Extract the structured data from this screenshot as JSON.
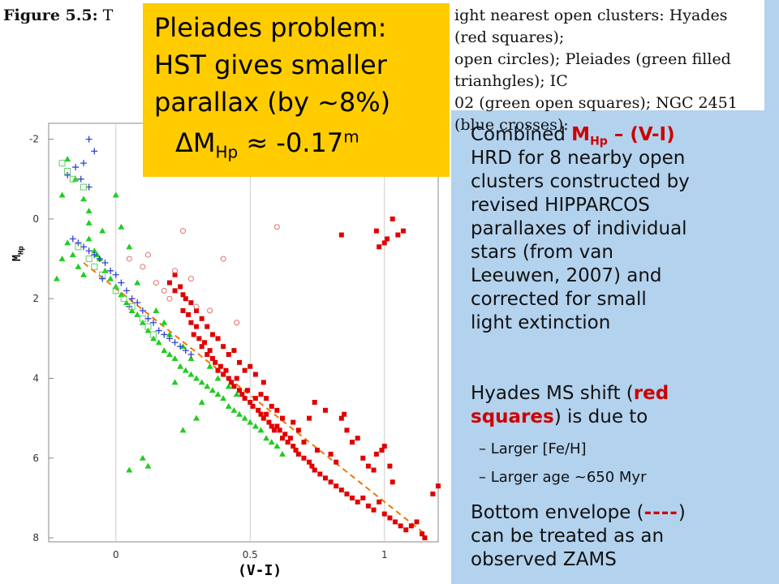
{
  "caption": {
    "segments": [
      {
        "text": "Figure 5.5:",
        "bold": true
      },
      {
        "text": " T",
        "bold": false
      },
      {
        "text": "ight nearest open clusters: Hyades (red squares);",
        "bold": false,
        "gap_before": true
      },
      {
        "text": "open circles); Pleiades (green filled trianhgles); IC",
        "bold": false,
        "gap_before": true
      },
      {
        "text": "02 (green open squares); NGC 2451 (blue crosses):",
        "bold": false,
        "gap_before": true
      }
    ]
  },
  "callout": {
    "line1": "Pleiades problem:",
    "line2": "HST gives smaller",
    "line3": "parallax (by ~8%)",
    "line4_prefix": "ΔM",
    "line4_sub": "Hp",
    "line4_suffix": " ≈ -0.17",
    "line4_sup": "m"
  },
  "axes": {
    "ylabel_main": "M",
    "ylabel_sub": "Hp",
    "xlabel": "(V-I)"
  },
  "text_panel": {
    "p1_prefix": "Combined ",
    "p1_hl_main": "M",
    "p1_hl_sub": "Hp",
    "p1_hl_rest": " – (V-I)",
    "p1_lines": [
      "HRD for 8 nearby open",
      "clusters constructed by",
      "revised HIPPARCOS",
      "parallaxes of individual",
      "stars (from van",
      "Leeuwen, 2007) and",
      "corrected for small",
      "light extinction"
    ],
    "p2_prefix": "Hyades MS shift (",
    "p2_hl1": "red",
    "p2_hl2": "squares",
    "p2_suffix": ") is due to",
    "bullets": [
      "–  Larger [Fe/H]",
      "–  Larger age ~650 Myr"
    ],
    "p3_prefix": "Bottom envelope (",
    "p3_hl": "----",
    "p3_suffix": ")",
    "p3_lines": [
      "can be treated as an",
      "observed ZAMS"
    ]
  },
  "chart_data": {
    "type": "scatter",
    "xlim": [
      -0.25,
      1.2
    ],
    "ylim": [
      8.1,
      -2.4
    ],
    "xticks": [
      "0",
      "0.5",
      "1"
    ],
    "yticks": [
      "-2",
      "0",
      "2",
      "4",
      "6",
      "8"
    ],
    "xlabel": "(V-I)",
    "ylabel": "M_Hp",
    "zams_line": [
      [
        -0.12,
        1.1
      ],
      [
        1.15,
        7.9
      ]
    ],
    "colors": {
      "hyades": "#e00000",
      "pleiades": "#22cc22",
      "ic": "#66cc66",
      "ngc": "#3344cc",
      "open_circles": "#e07070",
      "zams": "#ee7700"
    },
    "series": [
      {
        "name": "Hyades",
        "marker": "filled-square",
        "color": "#e00000",
        "points": [
          [
            0.2,
            1.6
          ],
          [
            0.22,
            1.4
          ],
          [
            0.24,
            1.7
          ],
          [
            0.25,
            1.9
          ],
          [
            0.26,
            2.0
          ],
          [
            0.25,
            2.3
          ],
          [
            0.27,
            2.4
          ],
          [
            0.28,
            2.6
          ],
          [
            0.29,
            2.9
          ],
          [
            0.3,
            2.7
          ],
          [
            0.31,
            3.0
          ],
          [
            0.32,
            3.2
          ],
          [
            0.33,
            3.1
          ],
          [
            0.34,
            3.4
          ],
          [
            0.35,
            3.3
          ],
          [
            0.36,
            3.5
          ],
          [
            0.37,
            3.6
          ],
          [
            0.38,
            3.8
          ],
          [
            0.39,
            3.7
          ],
          [
            0.4,
            3.9
          ],
          [
            0.41,
            3.8
          ],
          [
            0.42,
            4.0
          ],
          [
            0.43,
            4.1
          ],
          [
            0.44,
            4.2
          ],
          [
            0.45,
            4.0
          ],
          [
            0.46,
            4.3
          ],
          [
            0.47,
            4.4
          ],
          [
            0.48,
            4.5
          ],
          [
            0.49,
            4.3
          ],
          [
            0.5,
            4.6
          ],
          [
            0.51,
            4.7
          ],
          [
            0.52,
            4.5
          ],
          [
            0.53,
            4.8
          ],
          [
            0.54,
            4.9
          ],
          [
            0.55,
            5.0
          ],
          [
            0.56,
            4.9
          ],
          [
            0.57,
            5.1
          ],
          [
            0.58,
            5.2
          ],
          [
            0.59,
            5.3
          ],
          [
            0.6,
            5.2
          ],
          [
            0.61,
            5.3
          ],
          [
            0.62,
            5.5
          ],
          [
            0.63,
            5.4
          ],
          [
            0.64,
            5.6
          ],
          [
            0.65,
            5.5
          ],
          [
            0.66,
            5.7
          ],
          [
            0.67,
            5.8
          ],
          [
            0.68,
            5.9
          ],
          [
            0.7,
            6.0
          ],
          [
            0.72,
            6.1
          ],
          [
            0.73,
            6.2
          ],
          [
            0.74,
            6.3
          ],
          [
            0.76,
            6.4
          ],
          [
            0.78,
            6.5
          ],
          [
            0.8,
            6.6
          ],
          [
            0.82,
            6.7
          ],
          [
            0.84,
            6.8
          ],
          [
            0.86,
            6.9
          ],
          [
            0.88,
            7.0
          ],
          [
            0.9,
            7.1
          ],
          [
            0.92,
            7.0
          ],
          [
            0.94,
            7.2
          ],
          [
            0.96,
            7.3
          ],
          [
            0.98,
            7.1
          ],
          [
            1.0,
            7.4
          ],
          [
            1.02,
            7.5
          ],
          [
            1.04,
            7.6
          ],
          [
            1.06,
            7.7
          ],
          [
            1.08,
            7.8
          ],
          [
            1.1,
            7.7
          ],
          [
            1.12,
            7.6
          ],
          [
            1.14,
            7.9
          ],
          [
            1.15,
            8.0
          ],
          [
            1.18,
            6.9
          ],
          [
            1.2,
            6.7
          ],
          [
            1.03,
            6.6
          ],
          [
            0.99,
            5.8
          ],
          [
            0.97,
            5.9
          ],
          [
            1.0,
            5.7
          ],
          [
            1.02,
            6.2
          ],
          [
            0.8,
            5.9
          ],
          [
            0.82,
            6.1
          ],
          [
            0.75,
            5.8
          ],
          [
            0.7,
            5.6
          ],
          [
            0.68,
            5.3
          ],
          [
            0.66,
            5.1
          ],
          [
            0.62,
            5.0
          ],
          [
            0.6,
            4.8
          ],
          [
            0.58,
            4.7
          ],
          [
            0.56,
            4.5
          ],
          [
            0.54,
            4.4
          ],
          [
            0.86,
            5.3
          ],
          [
            0.88,
            5.6
          ],
          [
            0.9,
            5.5
          ],
          [
            0.92,
            6.0
          ],
          [
            0.94,
            6.2
          ],
          [
            0.96,
            6.3
          ],
          [
            0.84,
            5.0
          ],
          [
            0.85,
            4.9
          ],
          [
            0.78,
            4.8
          ],
          [
            0.74,
            4.6
          ],
          [
            0.72,
            5.0
          ],
          [
            0.42,
            3.4
          ],
          [
            0.44,
            3.3
          ],
          [
            0.46,
            3.6
          ],
          [
            0.4,
            3.2
          ],
          [
            0.38,
            3.0
          ],
          [
            0.36,
            2.9
          ],
          [
            0.34,
            2.7
          ],
          [
            0.32,
            2.5
          ],
          [
            0.3,
            2.3
          ],
          [
            0.28,
            2.1
          ],
          [
            0.22,
            1.8
          ],
          [
            0.55,
            4.1
          ],
          [
            0.52,
            3.9
          ],
          [
            0.5,
            3.7
          ],
          [
            0.48,
            3.8
          ],
          [
            1.03,
            0.0
          ],
          [
            1.05,
            0.4
          ],
          [
            1.07,
            0.3
          ],
          [
            0.97,
            0.3
          ],
          [
            0.84,
            0.4
          ],
          [
            1.01,
            0.5
          ],
          [
            0.98,
            0.7
          ],
          [
            1.0,
            0.6
          ]
        ]
      },
      {
        "name": "Pleiades",
        "marker": "filled-triangle",
        "color": "#22cc22",
        "points": [
          [
            -0.22,
            1.5
          ],
          [
            -0.2,
            1.0
          ],
          [
            -0.18,
            0.6
          ],
          [
            -0.16,
            0.9
          ],
          [
            -0.14,
            1.2
          ],
          [
            -0.12,
            1.4
          ],
          [
            -0.1,
            0.5
          ],
          [
            -0.08,
            0.8
          ],
          [
            -0.06,
            1.0
          ],
          [
            -0.04,
            1.3
          ],
          [
            -0.02,
            1.5
          ],
          [
            0.0,
            1.7
          ],
          [
            0.02,
            1.9
          ],
          [
            0.04,
            2.1
          ],
          [
            0.06,
            2.3
          ],
          [
            0.08,
            2.4
          ],
          [
            0.1,
            2.6
          ],
          [
            0.12,
            2.8
          ],
          [
            0.14,
            3.0
          ],
          [
            0.16,
            3.1
          ],
          [
            0.18,
            3.3
          ],
          [
            0.2,
            3.4
          ],
          [
            0.22,
            3.5
          ],
          [
            0.24,
            3.7
          ],
          [
            0.26,
            3.8
          ],
          [
            0.28,
            3.9
          ],
          [
            0.3,
            4.0
          ],
          [
            0.32,
            4.1
          ],
          [
            0.34,
            4.2
          ],
          [
            0.36,
            4.3
          ],
          [
            0.38,
            4.4
          ],
          [
            0.4,
            4.5
          ],
          [
            0.42,
            4.7
          ],
          [
            0.44,
            4.8
          ],
          [
            0.46,
            4.9
          ],
          [
            0.48,
            5.0
          ],
          [
            0.5,
            5.1
          ],
          [
            0.52,
            5.2
          ],
          [
            0.54,
            5.3
          ],
          [
            0.56,
            5.5
          ],
          [
            0.58,
            5.6
          ],
          [
            0.6,
            5.7
          ],
          [
            0.62,
            5.9
          ],
          [
            0.1,
            6.0
          ],
          [
            0.05,
            6.3
          ],
          [
            0.12,
            6.2
          ],
          [
            0.25,
            5.3
          ],
          [
            0.3,
            5.0
          ],
          [
            -0.18,
            -1.5
          ],
          [
            -0.15,
            -1.0
          ],
          [
            -0.12,
            -0.5
          ],
          [
            -0.1,
            0.1
          ],
          [
            0.0,
            -0.6
          ],
          [
            0.02,
            0.2
          ],
          [
            0.05,
            0.7
          ],
          [
            -0.05,
            0.3
          ],
          [
            0.15,
            2.3
          ],
          [
            0.18,
            2.6
          ],
          [
            0.2,
            2.9
          ],
          [
            0.25,
            3.2
          ],
          [
            0.28,
            3.5
          ],
          [
            0.35,
            3.7
          ],
          [
            0.38,
            4.0
          ],
          [
            0.42,
            4.2
          ],
          [
            0.45,
            4.4
          ],
          [
            -0.2,
            -0.6
          ],
          [
            -0.1,
            -0.2
          ],
          [
            0.08,
            1.6
          ],
          [
            -0.07,
            0.9
          ],
          [
            0.22,
            4.1
          ],
          [
            0.32,
            4.6
          ]
        ]
      },
      {
        "name": "NGC 2451",
        "marker": "cross",
        "color": "#3344cc",
        "points": [
          [
            -0.1,
            -2.0
          ],
          [
            -0.08,
            -1.7
          ],
          [
            -0.12,
            -1.4
          ],
          [
            -0.15,
            -1.3
          ],
          [
            -0.13,
            -1.0
          ],
          [
            -0.1,
            -0.8
          ],
          [
            -0.18,
            -1.1
          ],
          [
            -0.16,
            0.5
          ],
          [
            -0.14,
            0.6
          ],
          [
            -0.12,
            0.7
          ],
          [
            -0.1,
            0.8
          ],
          [
            -0.08,
            0.9
          ],
          [
            -0.06,
            1.0
          ],
          [
            -0.04,
            1.1
          ],
          [
            -0.02,
            1.3
          ],
          [
            0.0,
            1.4
          ],
          [
            0.02,
            1.6
          ],
          [
            0.04,
            1.8
          ],
          [
            0.06,
            2.0
          ],
          [
            0.08,
            2.1
          ],
          [
            0.1,
            2.3
          ],
          [
            0.12,
            2.5
          ],
          [
            0.14,
            2.6
          ],
          [
            0.16,
            2.8
          ],
          [
            0.18,
            2.9
          ],
          [
            0.2,
            3.0
          ],
          [
            0.22,
            3.1
          ],
          [
            0.24,
            3.2
          ],
          [
            0.26,
            3.3
          ],
          [
            0.28,
            3.4
          ],
          [
            0.05,
            2.2
          ],
          [
            -0.05,
            1.5
          ]
        ]
      },
      {
        "name": "IC",
        "marker": "open-square",
        "color": "#66cc66",
        "points": [
          [
            -0.18,
            -1.2
          ],
          [
            -0.16,
            -1.0
          ],
          [
            -0.2,
            -1.4
          ],
          [
            -0.12,
            -0.8
          ],
          [
            -0.14,
            0.7
          ],
          [
            -0.1,
            1.0
          ],
          [
            -0.08,
            1.2
          ],
          [
            -0.05,
            1.4
          ],
          [
            0.0,
            1.8
          ],
          [
            0.03,
            2.0
          ],
          [
            0.06,
            2.2
          ],
          [
            0.1,
            2.5
          ],
          [
            0.12,
            2.7
          ],
          [
            0.14,
            2.9
          ]
        ]
      },
      {
        "name": "Open circles",
        "marker": "open-circle",
        "color": "#e07070",
        "points": [
          [
            0.05,
            1.0
          ],
          [
            0.1,
            1.2
          ],
          [
            0.12,
            0.9
          ],
          [
            0.15,
            1.6
          ],
          [
            0.2,
            2.0
          ],
          [
            0.25,
            0.3
          ],
          [
            0.28,
            1.5
          ],
          [
            0.3,
            2.2
          ],
          [
            0.4,
            1.0
          ],
          [
            0.6,
            0.2
          ],
          [
            0.45,
            2.6
          ],
          [
            0.35,
            2.3
          ],
          [
            0.18,
            1.8
          ],
          [
            0.22,
            1.3
          ]
        ]
      }
    ]
  }
}
